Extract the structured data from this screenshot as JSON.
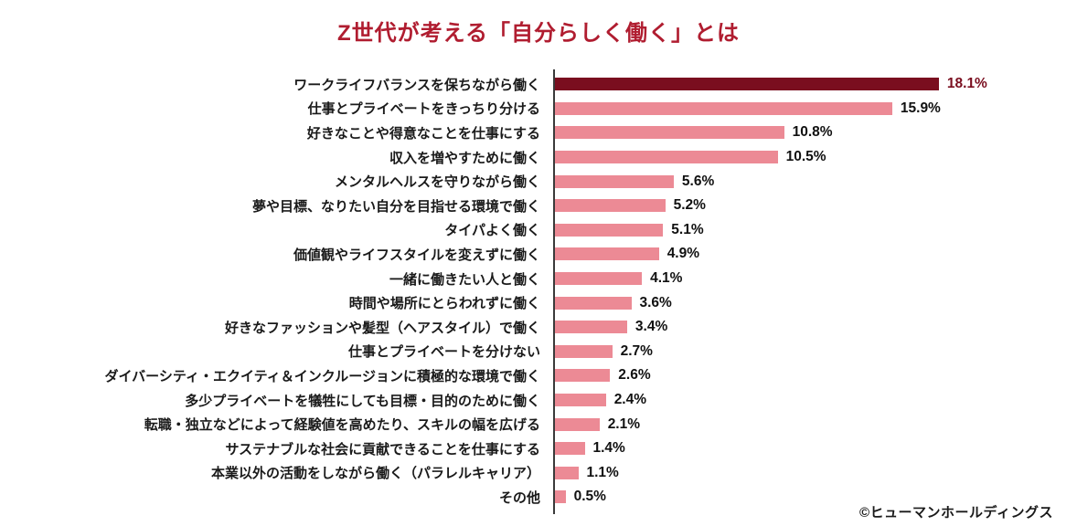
{
  "title": "Z世代が考える「自分らしく働く」とは",
  "copyright": "©ヒューマンホールディングス",
  "colors": {
    "title": "#b01d30",
    "bar_highlight": "#7a0e1f",
    "bar_default": "#ec8a95",
    "value_highlight": "#7a0e1f",
    "value_default": "#111111",
    "axis": "#3a3a3a",
    "label": "#1a1a1a"
  },
  "chart_data": {
    "type": "bar",
    "orientation": "horizontal",
    "title": "Z世代が考える「自分らしく働く」とは",
    "unit": "%",
    "xlim": [
      0,
      20
    ],
    "grid": false,
    "legend": false,
    "highlight_index": 0,
    "categories": [
      "ワークライフバランスを保ちながら働く",
      "仕事とプライベートをきっちり分ける",
      "好きなことや得意なことを仕事にする",
      "収入を増やすために働く",
      "メンタルヘルスを守りながら働く",
      "夢や目標、なりたい自分を目指せる環境で働く",
      "タイパよく働く",
      "価値観やライフスタイルを変えずに働く",
      "一緒に働きたい人と働く",
      "時間や場所にとらわれずに働く",
      "好きなファッションや髪型（ヘアスタイル）で働く",
      "仕事とプライベートを分けない",
      "ダイバーシティ・エクイティ＆インクルージョンに積極的な環境で働く",
      "多少プライベートを犠牲にしても目標・目的のために働く",
      "転職・独立などによって経験値を高めたり、スキルの幅を広げる",
      "サステナブルな社会に貢献できることを仕事にする",
      "本業以外の活動をしながら働く（パラレルキャリア）",
      "その他"
    ],
    "values": [
      18.1,
      15.9,
      10.8,
      10.5,
      5.6,
      5.2,
      5.1,
      4.9,
      4.1,
      3.6,
      3.4,
      2.7,
      2.6,
      2.4,
      2.1,
      1.4,
      1.1,
      0.5
    ],
    "value_labels": [
      "18.1%",
      "15.9%",
      "10.8%",
      "10.5%",
      "5.6%",
      "5.2%",
      "5.1%",
      "4.9%",
      "4.1%",
      "3.6%",
      "3.4%",
      "2.7%",
      "2.6%",
      "2.4%",
      "2.1%",
      "1.4%",
      "1.1%",
      "0.5%"
    ]
  }
}
